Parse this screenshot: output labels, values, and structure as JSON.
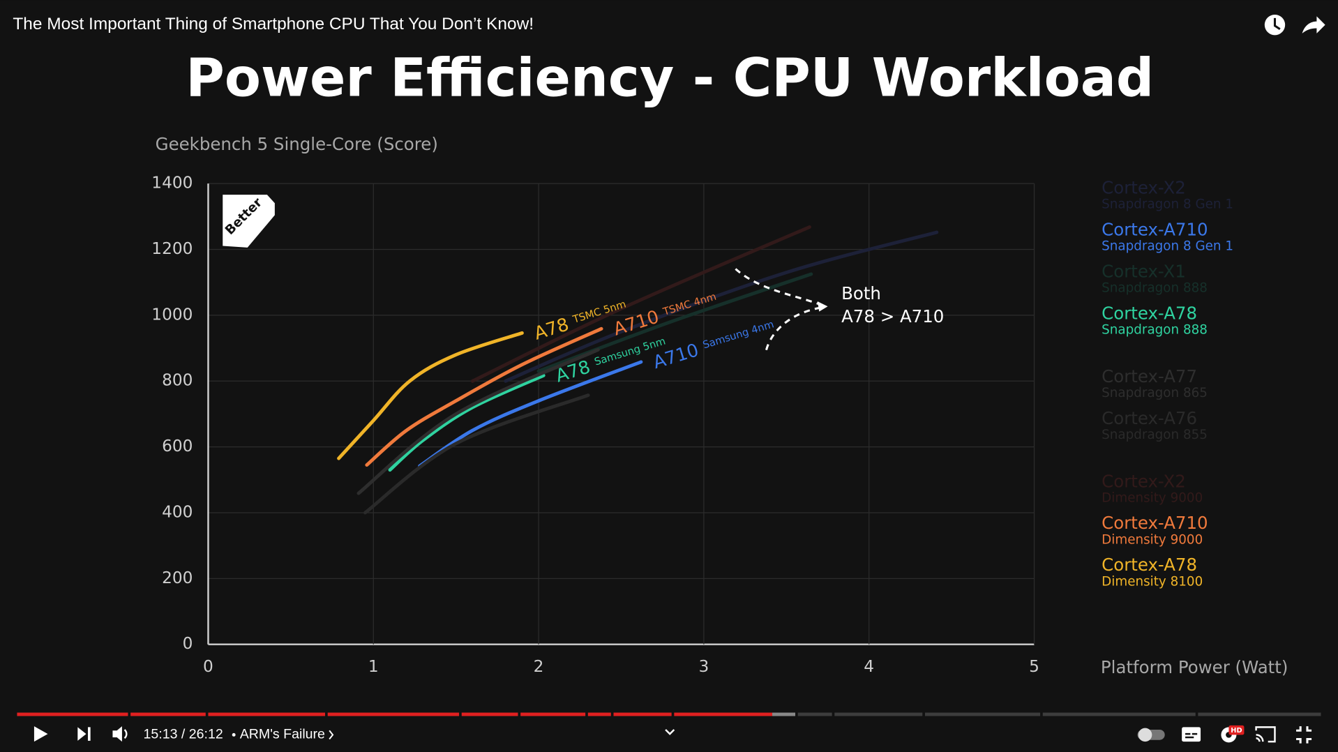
{
  "video_title": "The Most Important Thing of Smartphone CPU That You Don’t Know!",
  "player": {
    "time": "15:13 / 26:12",
    "chapter": "ARM's Failure",
    "hd_badge": "HD"
  },
  "chart_data": {
    "type": "line",
    "title": "Power Efficiency - CPU Workload",
    "y_label": "Geekbench 5 Single-Core (Score)",
    "x_label": "Platform Power (Watt)",
    "badge": "Better",
    "annotation": {
      "line1": "Both",
      "line2": "A78 > A710"
    },
    "xlim": [
      0,
      5
    ],
    "xticks": [
      0,
      1,
      2,
      3,
      4,
      5
    ],
    "ylim": [
      0,
      1400
    ],
    "yticks": [
      0,
      200,
      400,
      600,
      800,
      1000,
      1200,
      1400
    ],
    "grid": true,
    "series": [
      {
        "name": "Cortex-X2",
        "chip": "Snapdragon 8 Gen 1",
        "color": "#1d2138",
        "x": [
          1.8,
          2.5,
          3.5,
          4.41
        ],
        "values": [
          800,
          950,
          1130,
          1252
        ]
      },
      {
        "name": "Cortex-A710",
        "chip": "Snapdragon 8 Gen 1",
        "color": "#3b78ea",
        "label": "A710",
        "process": "Samsung 4nm",
        "x": [
          1.28,
          1.6,
          2.0,
          2.62
        ],
        "values": [
          542,
          650,
          740,
          858
        ]
      },
      {
        "name": "Cortex-X1",
        "chip": "Snapdragon 888",
        "color": "#16302a",
        "x": [
          2.0,
          2.8,
          3.65
        ],
        "values": [
          830,
          980,
          1125
        ]
      },
      {
        "name": "Cortex-A78",
        "chip": "Snapdragon 888",
        "color": "#2fd3a0",
        "label": "A78",
        "process": "Samsung 5nm",
        "x": [
          1.1,
          1.3,
          1.6,
          2.03
        ],
        "values": [
          530,
          620,
          720,
          817
        ]
      },
      {
        "name": "Cortex-A77",
        "chip": "Snapdragon 865",
        "color": "#2e2e2e",
        "x": [
          0.91,
          1.5,
          2.36
        ],
        "values": [
          459,
          700,
          895
        ]
      },
      {
        "name": "Cortex-A76",
        "chip": "Snapdragon 855",
        "color": "#2a2a2a",
        "x": [
          0.95,
          1.5,
          2.3
        ],
        "values": [
          400,
          610,
          757
        ]
      },
      {
        "name": "Cortex-X2",
        "chip": "Dimensity 9000",
        "color": "#321a1a",
        "x": [
          1.6,
          2.5,
          3.64
        ],
        "values": [
          800,
          1020,
          1268
        ]
      },
      {
        "name": "Cortex-A710",
        "chip": "Dimensity 9000",
        "color": "#f07a3c",
        "label": "A710",
        "process": "TSMC 4nm",
        "x": [
          0.96,
          1.2,
          1.5,
          1.9,
          2.38
        ],
        "values": [
          545,
          650,
          740,
          850,
          959
        ]
      },
      {
        "name": "Cortex-A78",
        "chip": "Dimensity 8100",
        "color": "#f0b428",
        "label": "A78",
        "process": "TSMC 5nm",
        "x": [
          0.79,
          1.0,
          1.22,
          1.5,
          1.9
        ],
        "values": [
          565,
          680,
          800,
          880,
          946
        ]
      }
    ]
  }
}
